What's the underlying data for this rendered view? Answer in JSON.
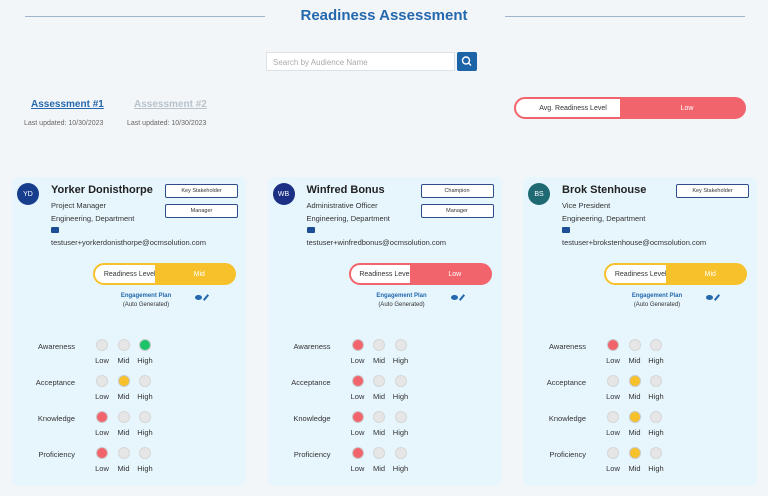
{
  "header": {
    "title": "Readiness Assessment",
    "search_placeholder": "Search by Audience Name"
  },
  "assessments": [
    {
      "label": "Assessment #1",
      "updated": "Last updated: 10/30/2023",
      "active": true
    },
    {
      "label": "Assessment #2",
      "updated": "Last updated: 10/30/2023",
      "active": false
    }
  ],
  "average": {
    "label": "Avg. Readiness Level",
    "value": "Low",
    "color": "#f2646c"
  },
  "levels": [
    {
      "label": "Low",
      "color": "#f2646c"
    },
    {
      "label": "Mid",
      "color": "#f7c12b"
    },
    {
      "label": "High",
      "color": "#1fc46a"
    }
  ],
  "cards": [
    {
      "initials": "YD",
      "avatar_color": "#173e8c",
      "name": "Yorker Donisthorpe",
      "role": "Project Manager",
      "department": "Engineering, Department",
      "email": "testuser+yorkerdonisthorpe@ocmsolution.com",
      "tags": [
        "Key Stakeholder",
        "Manager"
      ],
      "readiness_label": "Readiness Level",
      "readiness": "Mid",
      "readiness_color": "#f7c12b",
      "plan": "Engagement Plan",
      "plan_note": "(Auto Generated)",
      "ratings": [
        {
          "dimension": "Awareness",
          "level": 2
        },
        {
          "dimension": "Acceptance",
          "level": 1
        },
        {
          "dimension": "Knowledge",
          "level": 0
        },
        {
          "dimension": "Proficiency",
          "level": 0
        }
      ]
    },
    {
      "initials": "WB",
      "avatar_color": "#1b2f84",
      "name": "Winfred Bonus",
      "role": "Administrative Officer",
      "department": "Engineering, Department",
      "email": "testuser+winfredbonus@ocmsolution.com",
      "tags": [
        "Champion",
        "Manager"
      ],
      "readiness_label": "Readiness Level",
      "readiness": "Low",
      "readiness_color": "#f2646c",
      "plan": "Engagement Plan",
      "plan_note": "(Auto Generated)",
      "ratings": [
        {
          "dimension": "Awareness",
          "level": 0
        },
        {
          "dimension": "Acceptance",
          "level": 0
        },
        {
          "dimension": "Knowledge",
          "level": 0
        },
        {
          "dimension": "Proficiency",
          "level": 0
        }
      ]
    },
    {
      "initials": "BS",
      "avatar_color": "#1f6a72",
      "name": "Brok Stenhouse",
      "role": "Vice President",
      "department": "Engineering, Department",
      "email": "testuser+brokstenhouse@ocmsolution.com",
      "tags": [
        "Key Stakeholder"
      ],
      "readiness_label": "Readiness Level",
      "readiness": "Mid",
      "readiness_color": "#f7c12b",
      "plan": "Engagement Plan",
      "plan_note": "(Auto Generated)",
      "ratings": [
        {
          "dimension": "Awareness",
          "level": 0
        },
        {
          "dimension": "Acceptance",
          "level": 1
        },
        {
          "dimension": "Knowledge",
          "level": 1
        },
        {
          "dimension": "Proficiency",
          "level": 1
        }
      ]
    }
  ]
}
